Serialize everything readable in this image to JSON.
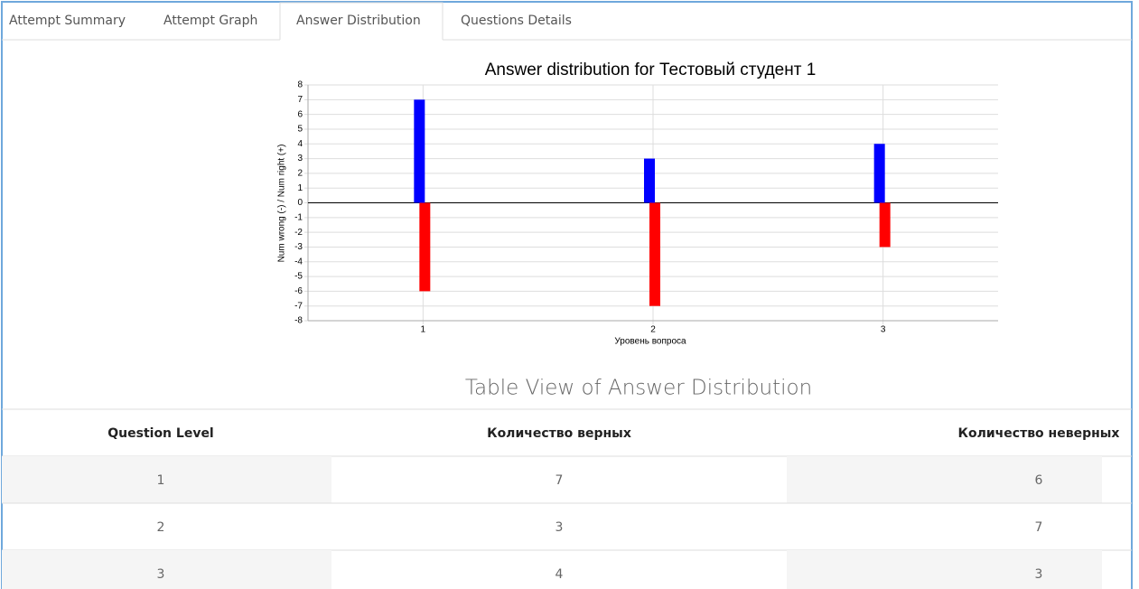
{
  "tabs": [
    "Attempt Summary",
    "Attempt Graph",
    "Answer Distribution",
    "Questions Details"
  ],
  "chart_data": {
    "type": "bar",
    "title": "Answer distribution for Тестовый студент 1",
    "x_label": "Уровень вопроса",
    "y_label": "Num wrong (-)  /  Num right (+)",
    "categories": [
      "1",
      "2",
      "3"
    ],
    "series": [
      {
        "color": "#0000ff",
        "values": [
          7,
          3,
          4
        ]
      },
      {
        "color": "#ff0000",
        "values": [
          -6,
          -7,
          -3
        ]
      }
    ],
    "ylim": [
      -8,
      8
    ],
    "yticks": [
      -8,
      -7,
      -6,
      -5,
      -4,
      -3,
      -2,
      -1,
      0,
      1,
      2,
      3,
      4,
      5,
      6,
      7,
      8
    ],
    "grid": true
  },
  "table": {
    "title": "Table View of Answer Distribution",
    "header": [
      "Question Level",
      "Количество верных",
      "Количество неверных"
    ],
    "rows": [
      [
        1,
        7,
        6
      ],
      [
        2,
        3,
        7
      ],
      [
        3,
        4,
        3
      ]
    ]
  }
}
